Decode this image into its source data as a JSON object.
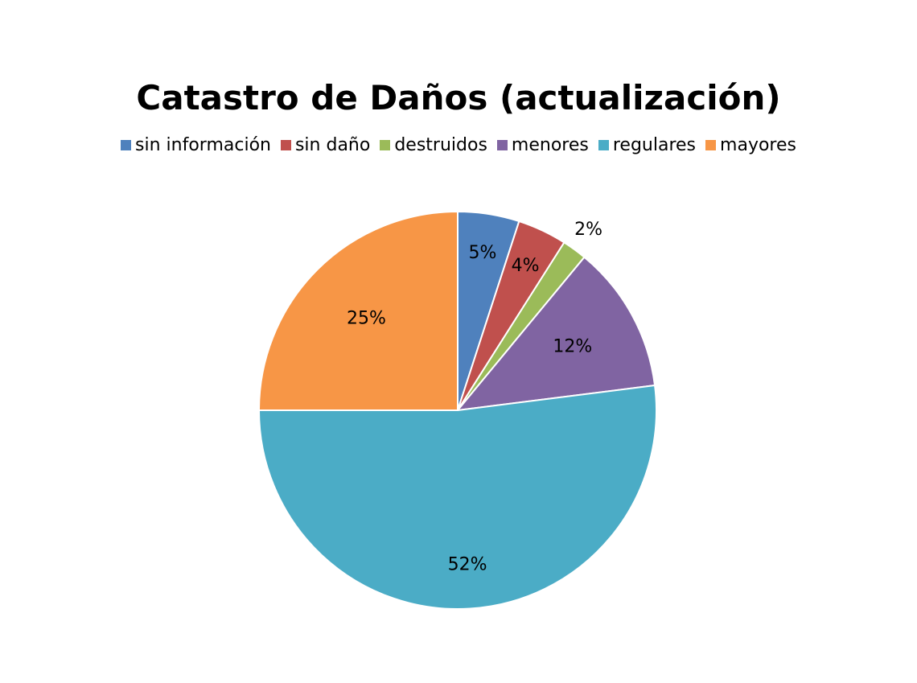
{
  "chart_data": {
    "type": "pie",
    "title": "Catastro de Daños (actualización)",
    "legend_position": "top",
    "slices": [
      {
        "name": "sin información",
        "value": 5,
        "label": "5%",
        "color": "#4F81BD"
      },
      {
        "name": "sin daño",
        "value": 4,
        "label": "4%",
        "color": "#C0504D"
      },
      {
        "name": "destruidos",
        "value": 2,
        "label": "2%",
        "color": "#9BBB59"
      },
      {
        "name": "menores",
        "value": 12,
        "label": "12%",
        "color": "#8064A2"
      },
      {
        "name": "regulares",
        "value": 52,
        "label": "52%",
        "color": "#4BACC6"
      },
      {
        "name": "mayores",
        "value": 25,
        "label": "25%",
        "color": "#F79646"
      }
    ]
  }
}
